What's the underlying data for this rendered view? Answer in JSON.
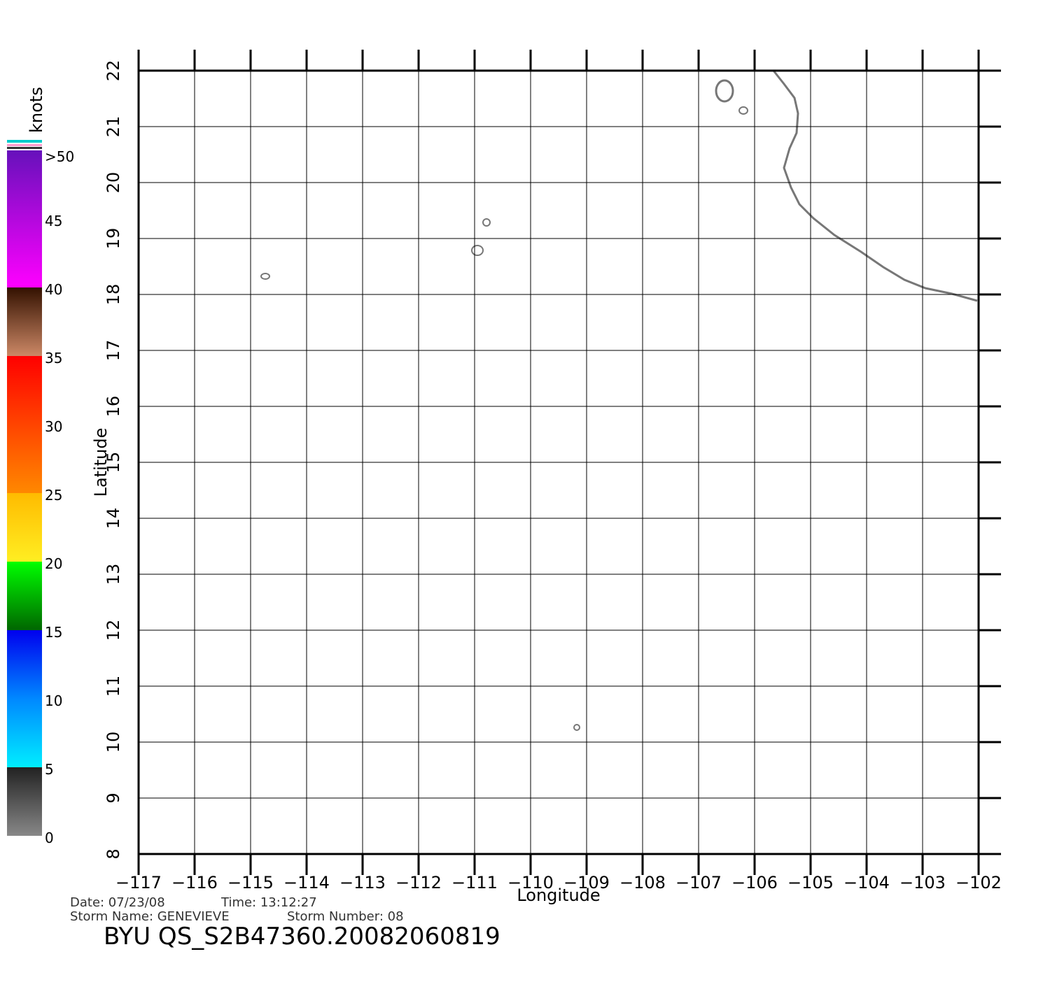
{
  "map": {
    "xlabel": "Longitude",
    "ylabel": "Latitude",
    "xlim": [
      -117,
      -102
    ],
    "ylim": [
      8,
      22
    ],
    "xticks": [
      {
        "value": -117,
        "label": "−117"
      },
      {
        "value": -116,
        "label": "−116"
      },
      {
        "value": -115,
        "label": "−115"
      },
      {
        "value": -114,
        "label": "−114"
      },
      {
        "value": -113,
        "label": "−113"
      },
      {
        "value": -112,
        "label": "−112"
      },
      {
        "value": -111,
        "label": "−111"
      },
      {
        "value": -110,
        "label": "−110"
      },
      {
        "value": -109,
        "label": "−109"
      },
      {
        "value": -108,
        "label": "−108"
      },
      {
        "value": -107,
        "label": "−107"
      },
      {
        "value": -106,
        "label": "−106"
      },
      {
        "value": -105,
        "label": "−105"
      },
      {
        "value": -104,
        "label": "−104"
      },
      {
        "value": -103,
        "label": "−103"
      },
      {
        "value": -102,
        "label": "−102"
      }
    ],
    "yticks": [
      8,
      9,
      10,
      11,
      12,
      13,
      14,
      15,
      16,
      17,
      18,
      19,
      20,
      21,
      22
    ],
    "grid": true
  },
  "colorbar": {
    "unit": "knots",
    "range": [
      0,
      50
    ],
    "ticks": [
      0,
      5,
      10,
      15,
      20,
      25,
      30,
      35,
      40,
      45,
      {
        "value": 50,
        "label": ">50"
      }
    ]
  },
  "footer": {
    "date": "Date: 07/23/08",
    "time": "Time: 13:12:27",
    "storm_name": "Storm Name: GENEVIEVE",
    "storm_number": "Storm Number: 08",
    "title": "BYU QS_S2B47360.20082060819"
  }
}
